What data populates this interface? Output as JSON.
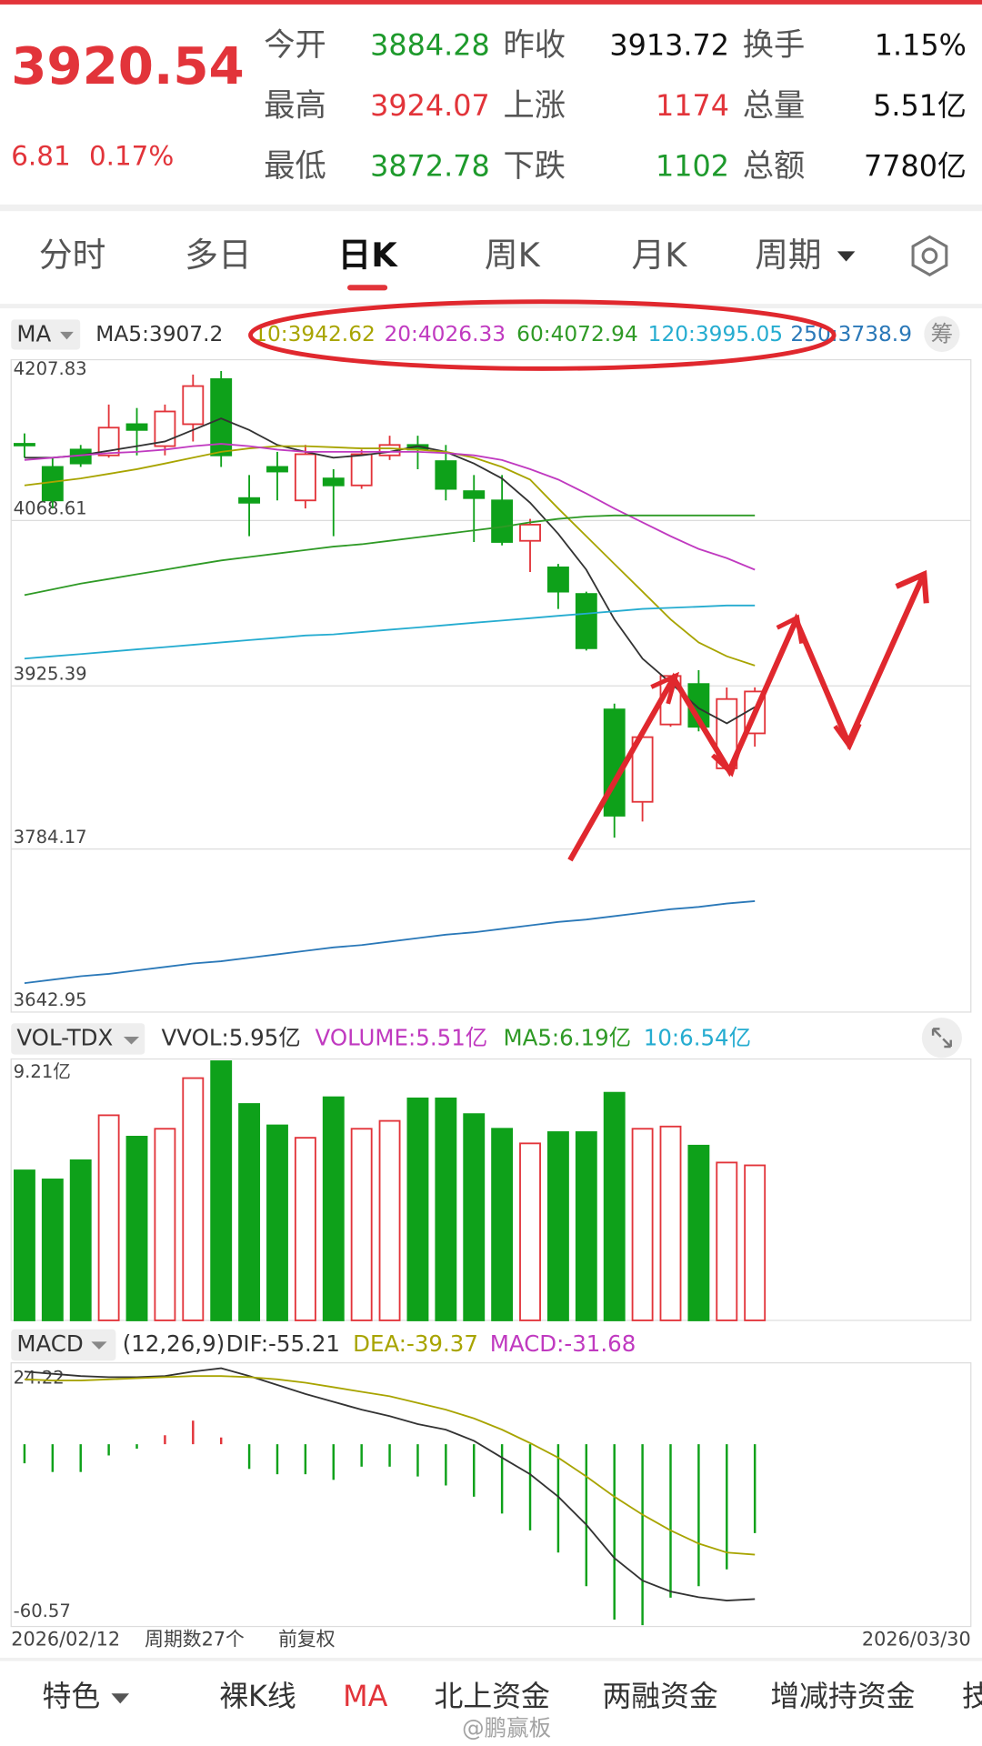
{
  "header": {
    "price": "3920.54",
    "change": "6.81",
    "change_pct": "0.17%",
    "stats": [
      {
        "label": "今开",
        "value": "3884.28",
        "color": "#1e9a2c"
      },
      {
        "label": "昨收",
        "value": "3913.72",
        "color": "#111111"
      },
      {
        "label": "换手",
        "value": "1.15%",
        "color": "#111111"
      },
      {
        "label": "最高",
        "value": "3924.07",
        "color": "#e2343a"
      },
      {
        "label": "上涨",
        "value": "1174",
        "color": "#e2343a"
      },
      {
        "label": "总量",
        "value": "5.51亿",
        "color": "#111111"
      },
      {
        "label": "最低",
        "value": "3872.78",
        "color": "#1e9a2c"
      },
      {
        "label": "下跌",
        "value": "1102",
        "color": "#1e9a2c"
      },
      {
        "label": "总额",
        "value": "7780亿",
        "color": "#111111"
      }
    ]
  },
  "tabs": {
    "items": [
      "分时",
      "多日",
      "日K",
      "周K",
      "月K",
      "周期"
    ],
    "active": 2
  },
  "kline": {
    "type": "candlestick",
    "up_color": "#e2343a",
    "down_color": "#0ea11a",
    "ylim": [
      3642.95,
      4207.83
    ],
    "yticks": [
      3642.95,
      3784.17,
      3925.39,
      4068.61,
      4207.83
    ],
    "grid": true,
    "open": [
      4135,
      4115,
      4130,
      4125,
      4152,
      4133,
      4152,
      4191,
      4088,
      4115,
      4086,
      4105,
      4099,
      4125,
      4134,
      4120,
      4094,
      4086,
      4051,
      4028,
      4005,
      3905,
      3825,
      3892,
      3927,
      3854,
      3884.28
    ],
    "high": [
      4144,
      4123,
      4134,
      4169,
      4166,
      4169,
      4195,
      4198,
      4108,
      4128,
      4134,
      4113,
      4130,
      4142,
      4142,
      4134,
      4108,
      4108,
      4070,
      4031,
      4007,
      3910,
      3886,
      3934,
      3939,
      3924,
      3924.07
    ],
    "low": [
      4123,
      4079,
      4115,
      4123,
      4125,
      4125,
      4137,
      4115,
      4055,
      4086,
      4079,
      4055,
      4096,
      4121,
      4113,
      4086,
      4050,
      4047,
      4024,
      3992,
      3956,
      3794,
      3808,
      3890,
      3886,
      3852,
      3872.78
    ],
    "close": [
      4134,
      4086,
      4118,
      4149,
      4147,
      4163,
      4185,
      4125,
      4084,
      4111,
      4126,
      4099,
      4126,
      4134,
      4130,
      4096,
      4088,
      4050,
      4065,
      4007,
      3958,
      3813,
      3881,
      3934,
      3890,
      3914,
      3920.54
    ],
    "legend": {
      "selector": "MA",
      "items": [
        {
          "text": "MA5:3907.2",
          "color": "#333333"
        },
        {
          "text": "10:3942.62",
          "color": "#a8a400"
        },
        {
          "text": "20:4026.33",
          "color": "#c03ac0"
        },
        {
          "text": "60:4072.94",
          "color": "#2f9a26"
        },
        {
          "text": "120:3995.05",
          "color": "#25acd0"
        },
        {
          "text": "250:3738.9",
          "color": "#2a78b8"
        }
      ],
      "extra": "筹"
    },
    "ma_series": [
      {
        "color": "#333333",
        "values": [
          4123,
          4123,
          4125,
          4129,
          4133,
          4137,
          4147,
          4157,
          4147,
          4134,
          4128,
          4123,
          4125,
          4128,
          4133,
          4128,
          4118,
          4105,
          4084,
          4057,
          4026,
          3983,
          3949,
          3928,
          3906,
          3893,
          3907
        ]
      },
      {
        "color": "#a8a400",
        "values": [
          4099,
          4102,
          4105,
          4109,
          4113,
          4118,
          4123,
          4128,
          4131,
          4133,
          4133,
          4132,
          4131,
          4131,
          4130,
          4128,
          4123,
          4115,
          4104,
          4079,
          4055,
          4031,
          4007,
          3983,
          3963,
          3951,
          3943
        ]
      },
      {
        "color": "#c03ac0",
        "values": [
          4121,
          4123,
          4125,
          4127,
          4128,
          4130,
          4133,
          4135,
          4133,
          4130,
          4128,
          4128,
          4128,
          4128,
          4128,
          4127,
          4125,
          4121,
          4113,
          4104,
          4092,
          4079,
          4067,
          4055,
          4044,
          4036,
          4026
        ]
      },
      {
        "color": "#2f9a26",
        "values": [
          4004,
          4009,
          4014,
          4018,
          4022,
          4026,
          4030,
          4034,
          4037,
          4040,
          4043,
          4046,
          4048,
          4051,
          4054,
          4057,
          4060,
          4063,
          4067,
          4070,
          4072,
          4073,
          4073,
          4073,
          4073,
          4073,
          4073
        ]
      },
      {
        "color": "#25acd0",
        "values": [
          3949,
          3951,
          3953,
          3955,
          3957,
          3959,
          3961,
          3963,
          3965,
          3967,
          3969,
          3970,
          3972,
          3974,
          3976,
          3978,
          3980,
          3982,
          3984,
          3986,
          3988,
          3990,
          3992,
          3993,
          3994,
          3995,
          3995
        ]
      },
      {
        "color": "#2a78b8",
        "values": [
          3668,
          3671,
          3674,
          3676,
          3679,
          3682,
          3685,
          3687,
          3690,
          3693,
          3696,
          3699,
          3701,
          3704,
          3707,
          3710,
          3712,
          3715,
          3718,
          3721,
          3723,
          3726,
          3729,
          3732,
          3734,
          3737,
          3739
        ]
      }
    ]
  },
  "volume": {
    "type": "bar",
    "selector": "VOL-TDX",
    "legend": [
      {
        "text": "VVOL:5.95亿",
        "color": "#333333"
      },
      {
        "text": "VOLUME:5.51亿",
        "color": "#c03ac0"
      },
      {
        "text": "MA5:6.19亿",
        "color": "#2f9a26"
      },
      {
        "text": "10:6.54亿",
        "color": "#25acd0"
      }
    ],
    "ylim": [
      0,
      9.21
    ],
    "yticks": [
      {
        "value": 9.21,
        "label": "9.21亿"
      }
    ],
    "values": [
      5.33,
      5.01,
      5.69,
      7.29,
      6.53,
      6.81,
      8.61,
      9.21,
      7.69,
      6.93,
      6.49,
      7.93,
      6.81,
      7.09,
      7.89,
      7.89,
      7.33,
      6.81,
      6.29,
      6.69,
      6.69,
      8.09,
      6.81,
      6.89,
      6.21,
      5.61,
      5.51
    ]
  },
  "macd": {
    "type": "bar",
    "selector": "MACD",
    "params": "(12,26,9)",
    "legend": [
      {
        "text": "DIF:-55.21",
        "color": "#333333"
      },
      {
        "text": "DEA:-39.37",
        "color": "#a8a400"
      },
      {
        "text": "MACD:-31.68",
        "color": "#c03ac0"
      }
    ],
    "ylim": [
      -60.57,
      24.22
    ],
    "yticks": [
      -60.57,
      24.22
    ],
    "values": [
      -6.8,
      -9.9,
      -9.9,
      -4.0,
      -1.6,
      3.2,
      8.4,
      2.4,
      -8.8,
      -10.7,
      -10.7,
      -12.7,
      -8.0,
      -8.0,
      -11.5,
      -14.7,
      -18.7,
      -24.7,
      -30.7,
      -38.6,
      -50.6,
      -62.5,
      -64.5,
      -54.7,
      -50.6,
      -44.6,
      -31.68
    ],
    "series": [
      {
        "color": "#333333",
        "values": [
          25.9,
          25.1,
          24.3,
          23.9,
          23.9,
          24.3,
          25.9,
          27.1,
          24.3,
          21.1,
          17.9,
          15.1,
          12.3,
          10.0,
          7.2,
          5.2,
          1.2,
          -4.8,
          -10.7,
          -18.7,
          -28.7,
          -40.6,
          -48.6,
          -52.5,
          -54.5,
          -55.7,
          -55.21
        ]
      },
      {
        "color": "#a8a400",
        "values": [
          23.1,
          22.7,
          22.7,
          23.1,
          23.5,
          23.9,
          24.3,
          24.3,
          23.9,
          23.1,
          21.9,
          20.3,
          18.7,
          17.1,
          14.7,
          12.3,
          9.2,
          5.2,
          0.4,
          -4.8,
          -11.5,
          -18.7,
          -25.1,
          -30.7,
          -35.4,
          -38.6,
          -39.37
        ]
      }
    ]
  },
  "footer": {
    "start_date": "2026/02/12",
    "periods": "周期数27个",
    "adjust": "前复权",
    "end_date": "2026/03/30"
  },
  "toolbar": {
    "items": [
      "特色",
      "裸K线",
      "MA",
      "北上资金",
      "两融资金",
      "增减持资金",
      "技"
    ],
    "active": 2
  },
  "watermark": "@鹏赢板"
}
